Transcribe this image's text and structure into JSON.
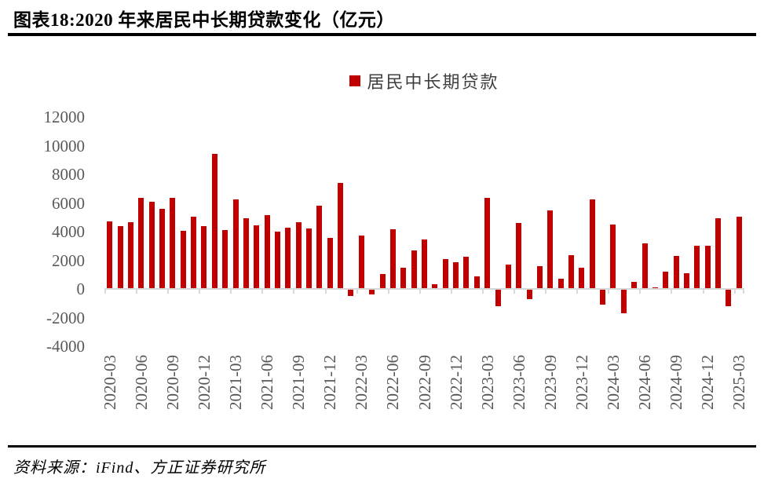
{
  "header": {
    "title": "图表18:2020 年来居民中长期贷款变化（亿元）"
  },
  "legend": {
    "label": "居民中长期贷款",
    "swatch_color": "#C00000"
  },
  "footer": {
    "source": "资料来源：iFind、方正证券研究所"
  },
  "colors": {
    "bar": "#C00000",
    "axis": "#D9D9D9",
    "tick_label": "#595959",
    "rule": "#000000"
  },
  "chart_data": {
    "type": "bar",
    "title": "图表18:2020 年来居民中长期贷款变化（亿元）",
    "unit": "亿元",
    "series_name": "居民中长期贷款",
    "legend_position": "top-center",
    "grid": false,
    "ylim": [
      -4000,
      12000
    ],
    "yticks": [
      12000,
      10000,
      8000,
      6000,
      4000,
      2000,
      0,
      -2000,
      -4000
    ],
    "x": [
      "2020-03",
      "2020-04",
      "2020-05",
      "2020-06",
      "2020-07",
      "2020-08",
      "2020-09",
      "2020-10",
      "2020-11",
      "2020-12",
      "2021-01",
      "2021-02",
      "2021-03",
      "2021-04",
      "2021-05",
      "2021-06",
      "2021-07",
      "2021-08",
      "2021-09",
      "2021-10",
      "2021-11",
      "2021-12",
      "2022-01",
      "2022-02",
      "2022-03",
      "2022-04",
      "2022-05",
      "2022-06",
      "2022-07",
      "2022-08",
      "2022-09",
      "2022-10",
      "2022-11",
      "2022-12",
      "2023-01",
      "2023-02",
      "2023-03",
      "2023-04",
      "2023-05",
      "2023-06",
      "2023-07",
      "2023-08",
      "2023-09",
      "2023-10",
      "2023-11",
      "2023-12",
      "2024-01",
      "2024-02",
      "2024-03",
      "2024-04",
      "2024-05",
      "2024-06",
      "2024-07",
      "2024-08",
      "2024-09",
      "2024-10",
      "2024-11",
      "2024-12",
      "2025-01",
      "2025-02",
      "2025-03"
    ],
    "values": [
      4738,
      4389,
      4662,
      6349,
      6067,
      5571,
      6362,
      4059,
      5049,
      4392,
      9448,
      4113,
      6239,
      4918,
      4426,
      5156,
      3974,
      4259,
      4667,
      4221,
      5821,
      3558,
      7424,
      -459,
      3735,
      -313,
      1047,
      4167,
      1486,
      2658,
      3456,
      332,
      2103,
      1865,
      2231,
      863,
      6348,
      -1156,
      1684,
      4630,
      -672,
      1602,
      5470,
      707,
      2331,
      1462,
      6272,
      -1038,
      4516,
      -1666,
      514,
      3202,
      100,
      1200,
      2300,
      1100,
      3000,
      3000,
      4935,
      -1150,
      5047
    ],
    "xtick_labels": [
      "2020-03",
      "2020-06",
      "2020-09",
      "2020-12",
      "2021-03",
      "2021-06",
      "2021-09",
      "2021-12",
      "2022-03",
      "2022-06",
      "2022-09",
      "2022-12",
      "2023-03",
      "2023-06",
      "2023-09",
      "2023-12",
      "2024-03",
      "2024-06",
      "2024-09",
      "2024-12",
      "2025-03"
    ]
  }
}
